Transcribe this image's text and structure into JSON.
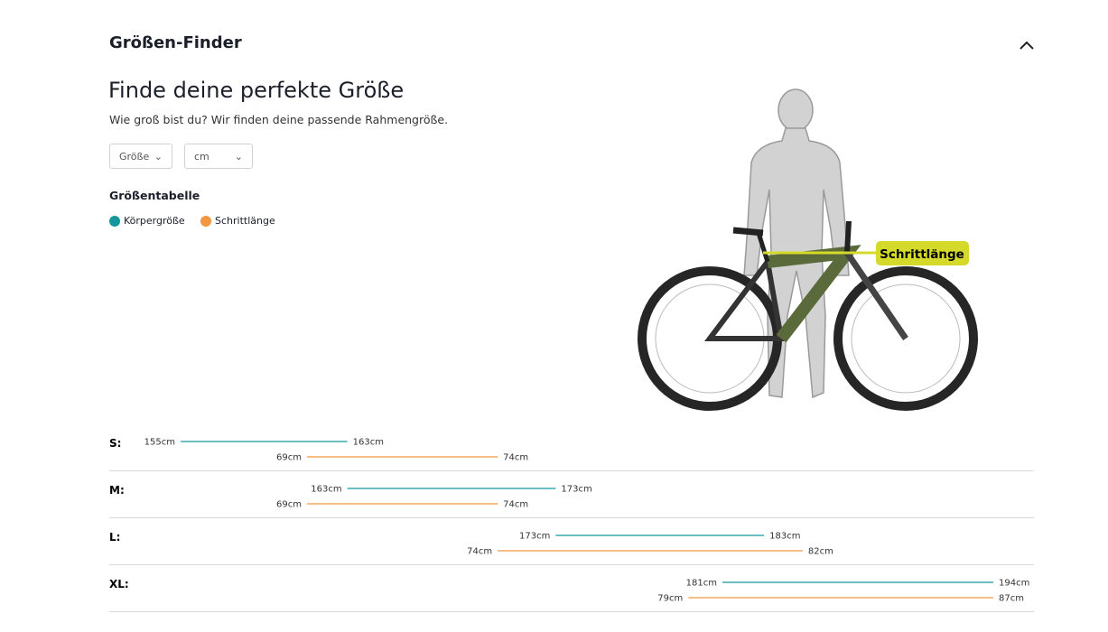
{
  "header": {
    "title": "Größen-Finder"
  },
  "intro": {
    "heading": "Finde deine perfekte Größe",
    "text": "Wie groß bist du? Wir finden deine passende Rahmengröße."
  },
  "selects": [
    "Größe",
    "cm"
  ],
  "size_table": {
    "title": "Größentabelle",
    "legend": [
      {
        "name": "Körpergröße",
        "color": "#13969c"
      },
      {
        "name": "Schrittlänge",
        "color": "#f2973f"
      }
    ],
    "rows": [
      {
        "size": "S:",
        "height": [
          155,
          163
        ],
        "height_labels": [
          "155cm",
          "163cm"
        ],
        "inseam": [
          69,
          74
        ],
        "inseam_labels": [
          "69cm",
          "74cm"
        ]
      },
      {
        "size": "M:",
        "height": [
          163,
          173
        ],
        "height_labels": [
          "163cm",
          "173cm"
        ],
        "inseam": [
          69,
          74
        ],
        "inseam_labels": [
          "69cm",
          "74cm"
        ]
      },
      {
        "size": "L:",
        "height": [
          173,
          183
        ],
        "height_labels": [
          "173cm",
          "183cm"
        ],
        "inseam": [
          74,
          82
        ],
        "inseam_labels": [
          "74cm",
          "82cm"
        ]
      },
      {
        "size": "XL:",
        "height": [
          181,
          194
        ],
        "height_labels": [
          "181cm",
          "194cm"
        ],
        "inseam": [
          79,
          87
        ],
        "inseam_labels": [
          "79cm",
          "87cm"
        ]
      }
    ]
  },
  "illustration": {
    "label": "Schrittlänge"
  }
}
